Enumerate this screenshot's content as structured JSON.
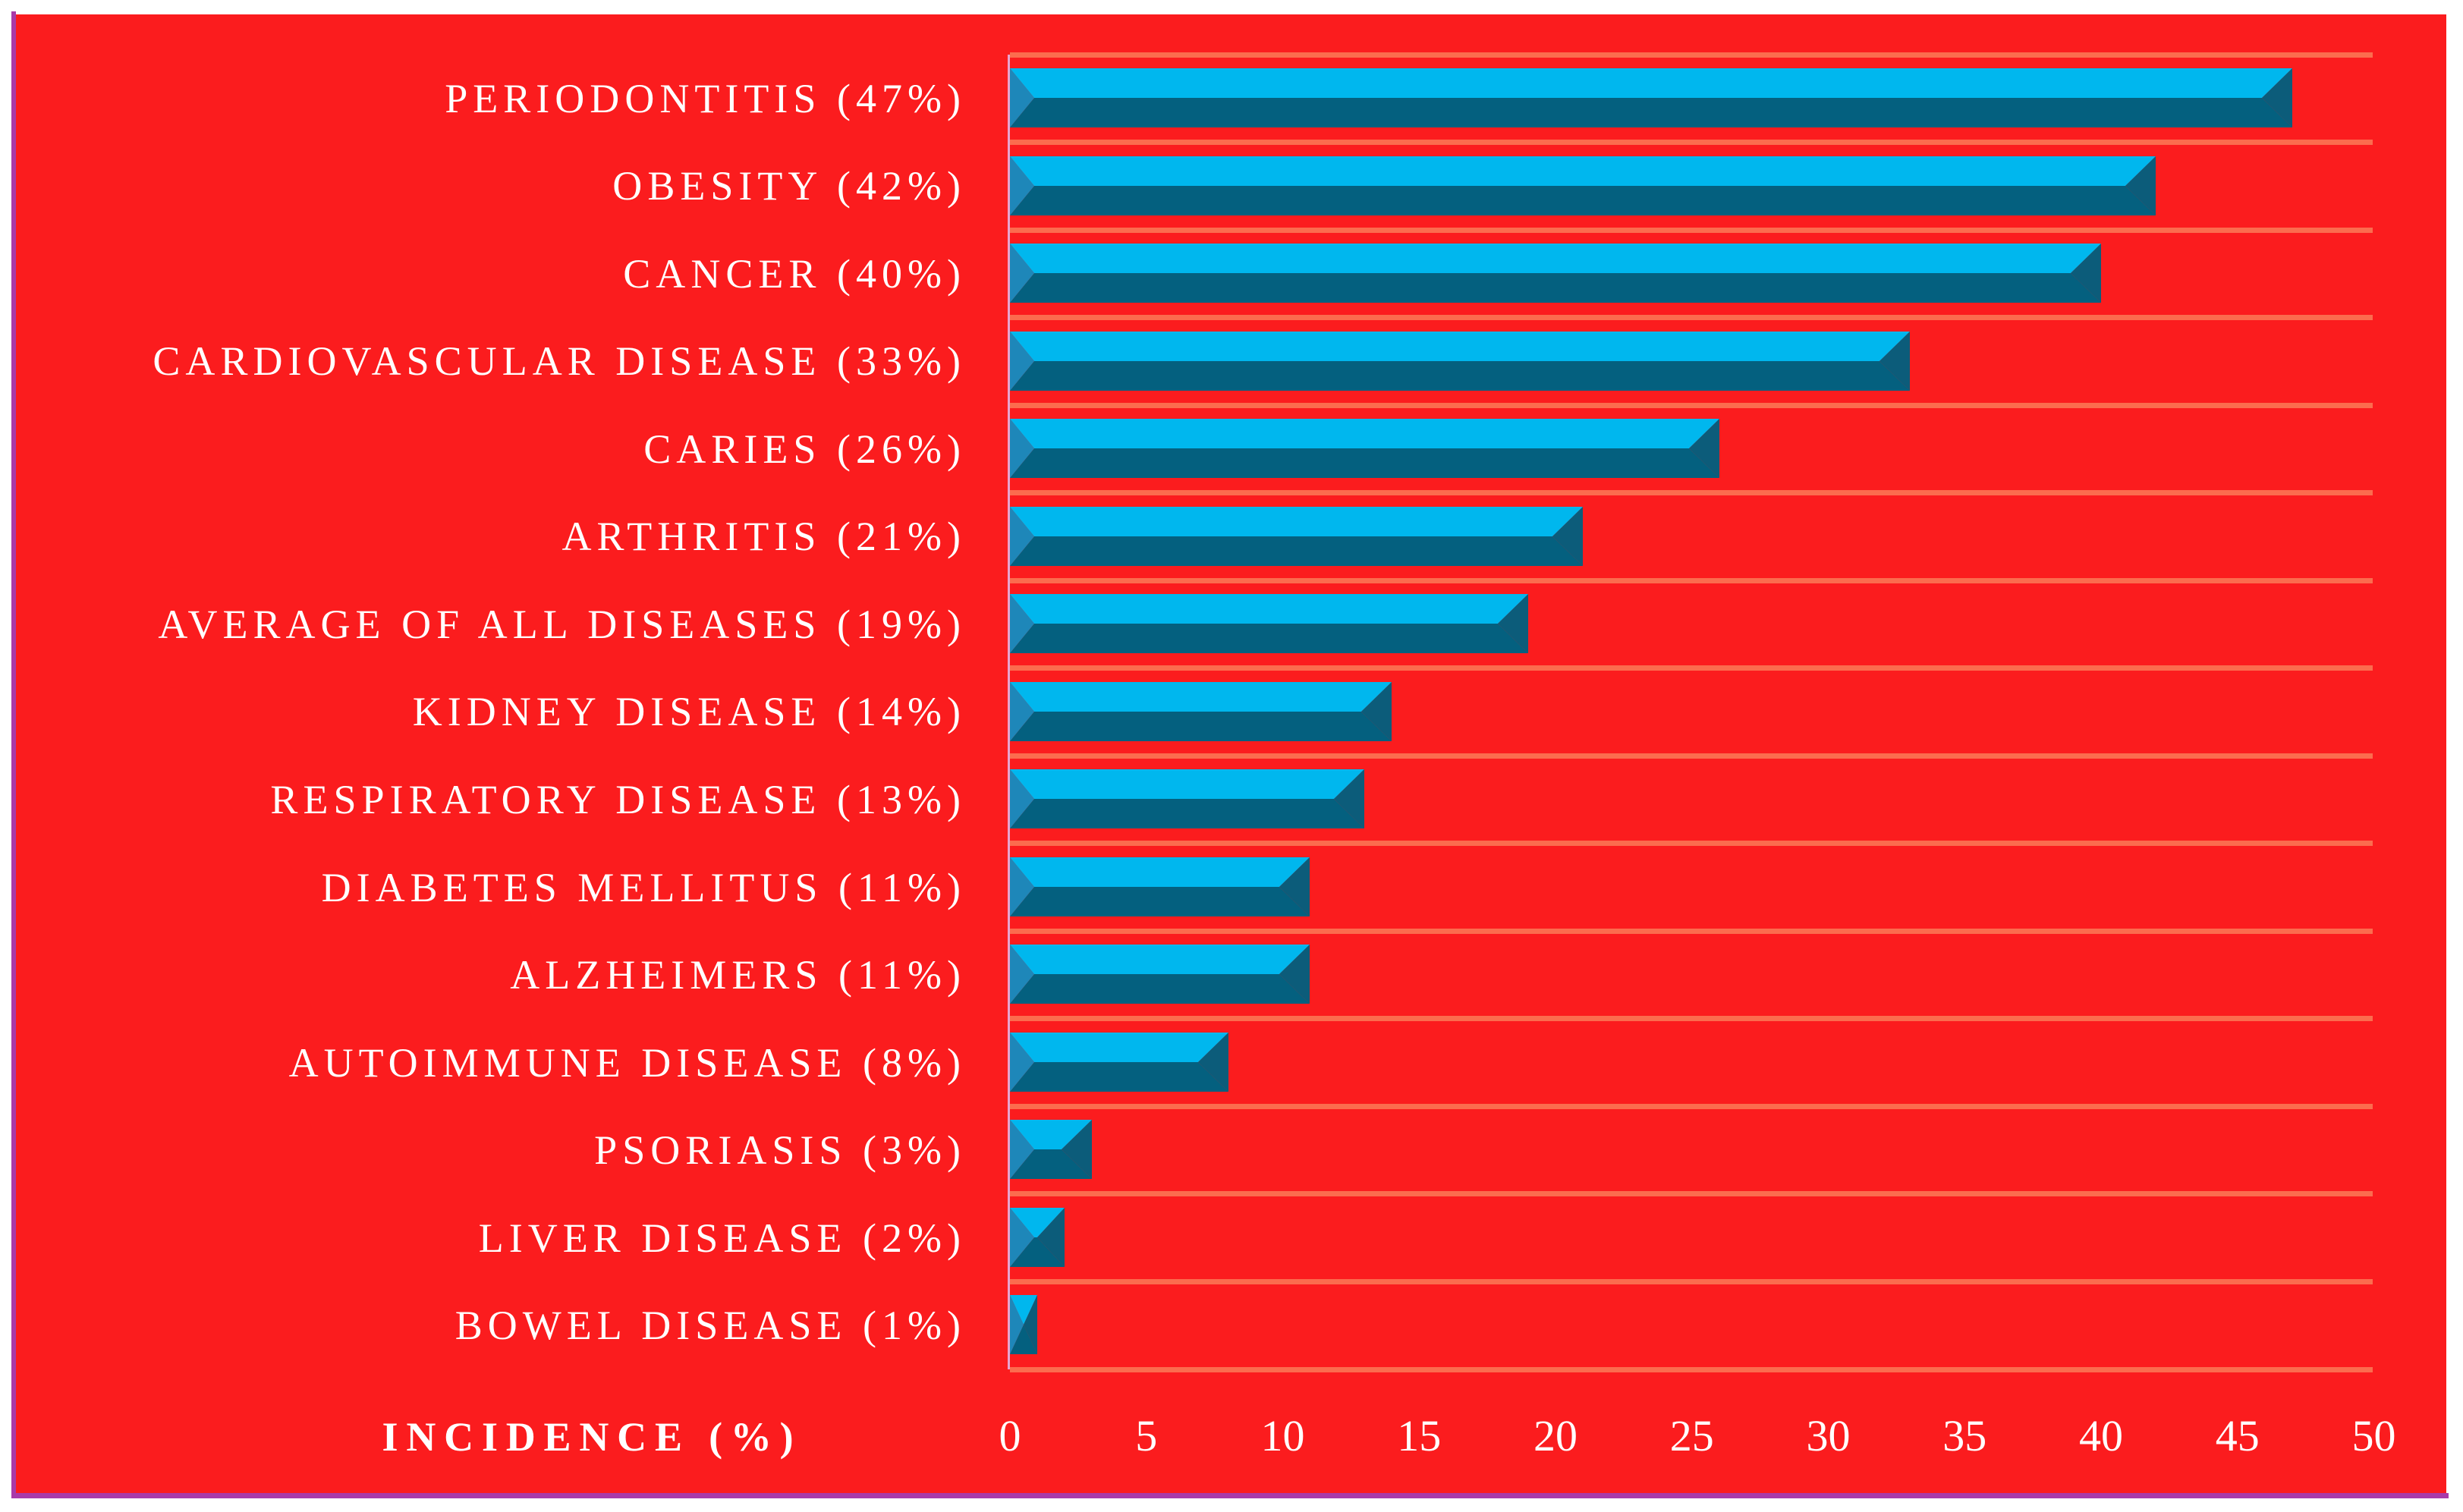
{
  "chart_data": {
    "type": "bar",
    "orientation": "horizontal",
    "title": "",
    "xlabel": "INCIDENCE (%)",
    "ylabel": "",
    "categories": [
      "PERIODONTITIS (47%)",
      "OBESITY (42%)",
      "CANCER (40%)",
      "CARDIOVASCULAR DISEASE (33%)",
      "CARIES (26%)",
      "ARTHRITIS (21%)",
      "AVERAGE OF ALL DISEASES (19%)",
      "KIDNEY DISEASE (14%)",
      "RESPIRATORY DISEASE (13%)",
      "DIABETES MELLITUS (11%)",
      "ALZHEIMERS (11%)",
      "AUTOIMMUNE DISEASE (8%)",
      "PSORIASIS (3%)",
      "LIVER DISEASE (2%)",
      "BOWEL DISEASE (1%)"
    ],
    "values": [
      47,
      42,
      40,
      33,
      26,
      21,
      19,
      14,
      13,
      11,
      11,
      8,
      3,
      2,
      1
    ],
    "xlim": [
      0,
      50
    ],
    "x_ticks": [
      0,
      5,
      10,
      15,
      20,
      25,
      30,
      35,
      40,
      45,
      50
    ],
    "grid": "horizontal category separator lines, on",
    "legend": "none",
    "bar_style": "3d beveled horizontal bars"
  },
  "colors": {
    "background": "#FB1C1E",
    "outer_background": "#FFFFFF",
    "border": "#A93AA9",
    "gridline": "#FB6C4E",
    "axis_line": "#E9A4CF",
    "text": "#FFFFFF",
    "bar_top": "#00B7EE",
    "bar_front": "#04607F",
    "bar_left_bevel": "#1E87B9",
    "bar_right_bevel": "#0C5C7A"
  }
}
